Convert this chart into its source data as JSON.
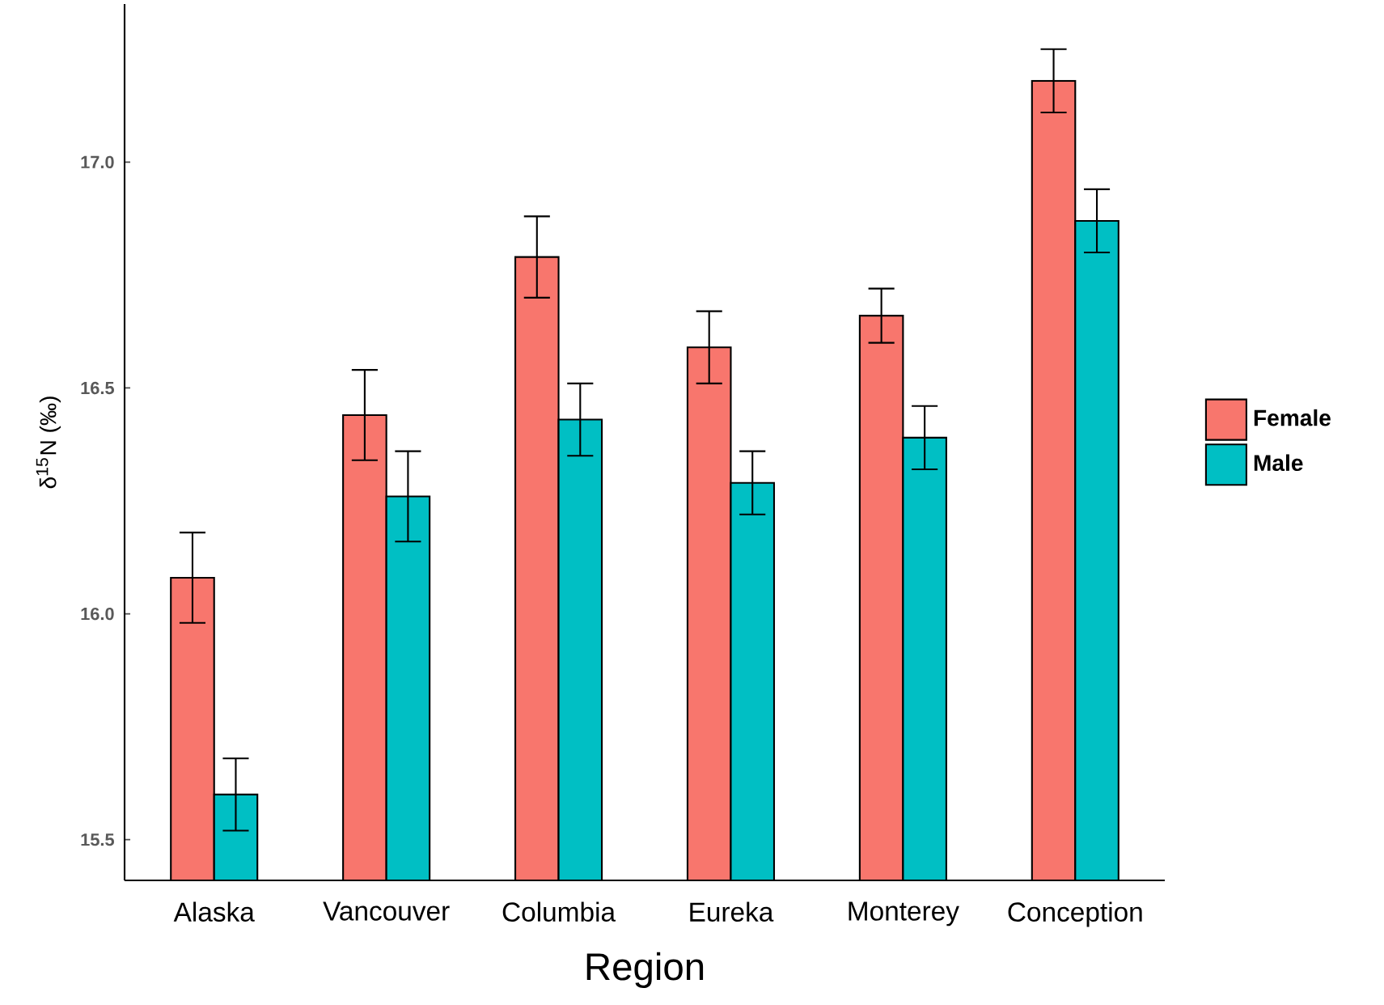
{
  "chart_data": {
    "type": "bar",
    "xlabel": "Region",
    "ylabel": "δ$^{15}$N (‰)",
    "categories": [
      "Alaska",
      "Vancouver",
      "Columbia",
      "Eureka",
      "Monterey",
      "Conception"
    ],
    "series": [
      {
        "name": "Female",
        "color": "#f8766d",
        "values": [
          16.08,
          16.44,
          16.79,
          16.59,
          16.66,
          17.18
        ],
        "errors": [
          0.1,
          0.1,
          0.09,
          0.08,
          0.06,
          0.07
        ]
      },
      {
        "name": "Male",
        "color": "#00bfc4",
        "values": [
          15.6,
          16.26,
          16.43,
          16.29,
          16.39,
          16.87
        ],
        "errors": [
          0.08,
          0.1,
          0.08,
          0.07,
          0.07,
          0.07
        ]
      }
    ],
    "ylim": [
      15.41,
      17.35
    ],
    "yticks": [
      {
        "value": 15.5,
        "label": "15.5"
      },
      {
        "value": 16.0,
        "label": "16.0"
      },
      {
        "value": 16.5,
        "label": "16.5"
      },
      {
        "value": 17.0,
        "label": "17.0"
      }
    ],
    "legend": "right",
    "grid": false
  }
}
